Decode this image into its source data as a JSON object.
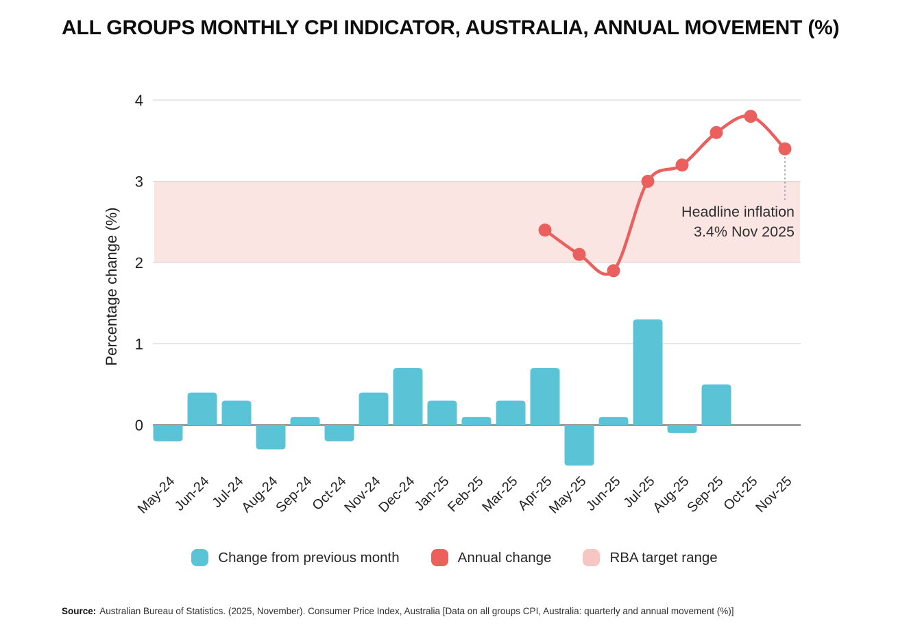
{
  "title": "ALL GROUPS MONTHLY CPI INDICATOR, AUSTRALIA, ANNUAL MOVEMENT (%)",
  "chart_data": {
    "type": "bar+line",
    "title": "ALL GROUPS MONTHLY CPI INDICATOR, AUSTRALIA, ANNUAL MOVEMENT (%)",
    "xlabel": "",
    "ylabel": "Percentage change (%)",
    "yticks": [
      0,
      1,
      2,
      3,
      4
    ],
    "ylim": [
      -0.8,
      4.3
    ],
    "grid": "horizontal",
    "legend_position": "bottom",
    "categories": [
      "May-24",
      "Jun-24",
      "Jul-24",
      "Aug-24",
      "Sep-24",
      "Oct-24",
      "Nov-24",
      "Dec-24",
      "Jan-25",
      "Feb-25",
      "Mar-25",
      "Apr-25",
      "May-25",
      "Jun-25",
      "Jul-25",
      "Aug-25",
      "Sep-25",
      "Oct-25",
      "Nov-25"
    ],
    "series": [
      {
        "name": "Change from previous month",
        "type": "bar",
        "color": "#5AC4D6",
        "values": [
          -0.2,
          0.4,
          0.3,
          -0.3,
          0.1,
          -0.2,
          0.4,
          0.7,
          0.3,
          0.1,
          0.3,
          0.7,
          -0.5,
          0.1,
          1.3,
          -0.1,
          0.5,
          null,
          null
        ]
      },
      {
        "name": "Annual change",
        "type": "line",
        "color": "#E9605E",
        "values": [
          null,
          null,
          null,
          null,
          null,
          null,
          null,
          null,
          null,
          null,
          null,
          2.4,
          2.1,
          1.9,
          3.0,
          3.2,
          3.6,
          3.8,
          3.4
        ]
      }
    ],
    "band": {
      "name": "RBA target range",
      "from": 2,
      "to": 3,
      "color": "#FBE5E3"
    },
    "annotation": {
      "line1": "Headline inflation",
      "line2": "3.4% Nov 2025",
      "target_category": "Nov-25",
      "target_value": 3.4
    }
  },
  "legend": [
    {
      "label": "Change from previous month",
      "color": "#5AC4D6"
    },
    {
      "label": "Annual change",
      "color": "#EC5F5A"
    },
    {
      "label": "RBA target range",
      "color": "#F8C6C2"
    }
  ],
  "source": {
    "label": "Source:",
    "text": "Australian Bureau of Statistics. (2025, November). Consumer Price Index, Australia [Data on all groups CPI, Australia: quarterly and annual movement (%)]"
  },
  "colors": {
    "grid": "#D9D9D9",
    "zero_axis": "#555555",
    "tick_text": "#1E1E1E",
    "annotation_text": "#2F2F2F",
    "connector": "#9A9A9A"
  }
}
